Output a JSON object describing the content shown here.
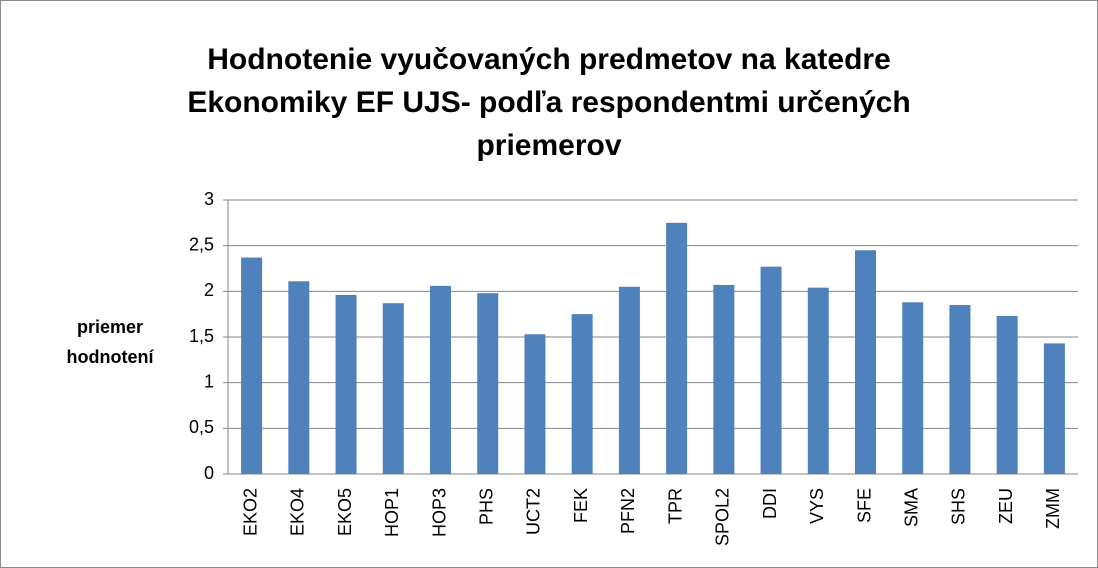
{
  "chart_data": {
    "type": "bar",
    "title": "Hodnotenie vyučovaných predmetov na katedre Ekonomiky EF UJS- podľa respondentmi určených priemerov",
    "y_axis_label": "priemer hodnotení",
    "categories": [
      "EKO2",
      "EKO4",
      "EKO5",
      "HOP1",
      "HOP3",
      "PHS",
      "UCT2",
      "FEK",
      "PFN2",
      "TPR",
      "SPOL2",
      "DDI",
      "VYS",
      "SFE",
      "SMA",
      "SHS",
      "ZEU",
      "ZMM"
    ],
    "values": [
      2.37,
      2.11,
      1.96,
      1.87,
      2.06,
      1.98,
      1.53,
      1.75,
      2.05,
      2.75,
      2.07,
      2.27,
      2.04,
      2.45,
      1.88,
      1.85,
      1.73,
      1.43
    ],
    "color": "#4f81bd",
    "ylim": [
      0,
      3
    ],
    "yticks": [
      0,
      {
        "value": 0.5,
        "label": "0,5"
      },
      1,
      {
        "value": 1.5,
        "label": "1,5"
      },
      2,
      {
        "value": 2.5,
        "label": "2,5"
      },
      3
    ],
    "grid": true
  }
}
